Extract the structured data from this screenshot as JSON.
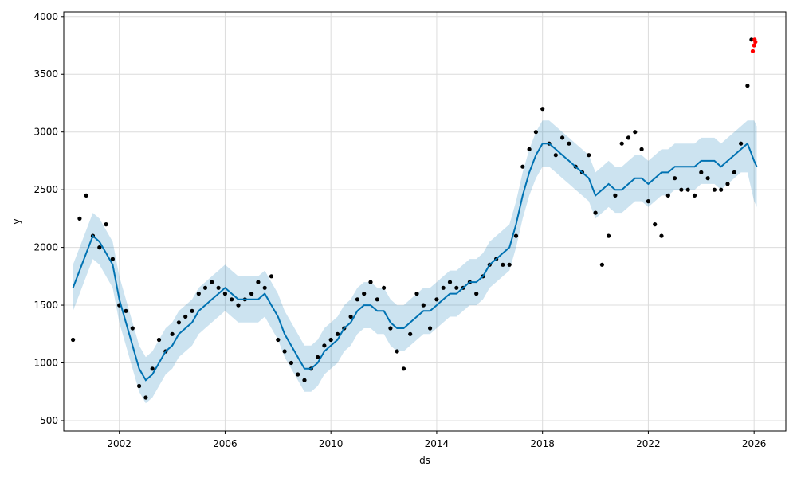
{
  "chart_data": {
    "type": "line",
    "title": "",
    "xlabel": "ds",
    "ylabel": "y",
    "grid": true,
    "xlim": [
      1999.9,
      2027.2
    ],
    "ylim": [
      410,
      4040
    ],
    "x_ticks": [
      2002,
      2006,
      2010,
      2014,
      2018,
      2022,
      2026
    ],
    "y_ticks": [
      500,
      1000,
      1500,
      2000,
      2500,
      3000,
      3500,
      4000
    ],
    "colors": {
      "observed": "#000000",
      "forecast": "#0072b2",
      "uncertainty": "#0072b2",
      "highlight": "#ff0000"
    },
    "series": [
      {
        "role": "observed",
        "x": [
          2000.25,
          2000.5,
          2000.75,
          2001.0,
          2001.25,
          2001.5,
          2001.75,
          2002.0,
          2002.25,
          2002.5,
          2002.75,
          2003.0,
          2003.25,
          2003.5,
          2003.75,
          2004.0,
          2004.25,
          2004.5,
          2004.75,
          2005.0,
          2005.25,
          2005.5,
          2005.75,
          2006.0,
          2006.25,
          2006.5,
          2006.75,
          2007.0,
          2007.25,
          2007.5,
          2007.75,
          2008.0,
          2008.25,
          2008.5,
          2008.75,
          2009.0,
          2009.25,
          2009.5,
          2009.75,
          2010.0,
          2010.25,
          2010.5,
          2010.75,
          2011.0,
          2011.25,
          2011.5,
          2011.75,
          2012.0,
          2012.25,
          2012.5,
          2012.75,
          2013.0,
          2013.25,
          2013.5,
          2013.75,
          2014.0,
          2014.25,
          2014.5,
          2014.75,
          2015.0,
          2015.25,
          2015.5,
          2015.75,
          2016.0,
          2016.25,
          2016.5,
          2016.75,
          2017.0,
          2017.25,
          2017.5,
          2017.75,
          2018.0,
          2018.25,
          2018.5,
          2018.75,
          2019.0,
          2019.25,
          2019.5,
          2019.75,
          2020.0,
          2020.25,
          2020.5,
          2020.75,
          2021.0,
          2021.25,
          2021.5,
          2021.75,
          2022.0,
          2022.25,
          2022.5,
          2022.75,
          2023.0,
          2023.25,
          2023.5,
          2023.75,
          2024.0,
          2024.25,
          2024.5,
          2024.75,
          2025.0,
          2025.25,
          2025.5,
          2025.75,
          2025.9
        ],
        "y": [
          1200,
          2250,
          2450,
          2100,
          2000,
          2200,
          1900,
          1500,
          1450,
          1300,
          800,
          700,
          950,
          1200,
          1100,
          1250,
          1350,
          1400,
          1450,
          1600,
          1650,
          1700,
          1650,
          1600,
          1550,
          1500,
          1550,
          1600,
          1700,
          1650,
          1750,
          1200,
          1100,
          1000,
          900,
          850,
          950,
          1050,
          1150,
          1200,
          1250,
          1300,
          1400,
          1550,
          1600,
          1700,
          1550,
          1650,
          1300,
          1100,
          950,
          1250,
          1600,
          1500,
          1300,
          1550,
          1650,
          1700,
          1650,
          1650,
          1700,
          1600,
          1750,
          1850,
          1900,
          1850,
          1850,
          2100,
          2700,
          2850,
          3000,
          3200,
          2900,
          2800,
          2950,
          2900,
          2700,
          2650,
          2800,
          2300,
          1850,
          2100,
          2450,
          2900,
          2950,
          3000,
          2850,
          2400,
          2200,
          2100,
          2450,
          2600,
          2500,
          2500,
          2450,
          2650,
          2600,
          2500,
          2500,
          2550,
          2650,
          2900,
          3400,
          3800
        ]
      },
      {
        "role": "forecast",
        "x": [
          2000.25,
          2000.5,
          2000.75,
          2001.0,
          2001.25,
          2001.5,
          2001.75,
          2002.0,
          2002.25,
          2002.5,
          2002.75,
          2003.0,
          2003.25,
          2003.5,
          2003.75,
          2004.0,
          2004.25,
          2004.5,
          2004.75,
          2005.0,
          2005.25,
          2005.5,
          2005.75,
          2006.0,
          2006.25,
          2006.5,
          2006.75,
          2007.0,
          2007.25,
          2007.5,
          2007.75,
          2008.0,
          2008.25,
          2008.5,
          2008.75,
          2009.0,
          2009.25,
          2009.5,
          2009.75,
          2010.0,
          2010.25,
          2010.5,
          2010.75,
          2011.0,
          2011.25,
          2011.5,
          2011.75,
          2012.0,
          2012.25,
          2012.5,
          2012.75,
          2013.0,
          2013.25,
          2013.5,
          2013.75,
          2014.0,
          2014.25,
          2014.5,
          2014.75,
          2015.0,
          2015.25,
          2015.5,
          2015.75,
          2016.0,
          2016.25,
          2016.5,
          2016.75,
          2017.0,
          2017.25,
          2017.5,
          2017.75,
          2018.0,
          2018.25,
          2018.5,
          2018.75,
          2019.0,
          2019.25,
          2019.5,
          2019.75,
          2020.0,
          2020.25,
          2020.5,
          2020.75,
          2021.0,
          2021.25,
          2021.5,
          2021.75,
          2022.0,
          2022.25,
          2022.5,
          2022.75,
          2023.0,
          2023.25,
          2023.5,
          2023.75,
          2024.0,
          2024.25,
          2024.5,
          2024.75,
          2025.0,
          2025.25,
          2025.5,
          2025.75,
          2026.0,
          2026.1
        ],
        "y": [
          1650,
          1800,
          1950,
          2100,
          2050,
          1950,
          1850,
          1550,
          1350,
          1150,
          950,
          850,
          900,
          1000,
          1100,
          1150,
          1250,
          1300,
          1350,
          1450,
          1500,
          1550,
          1600,
          1650,
          1600,
          1550,
          1550,
          1550,
          1550,
          1600,
          1500,
          1400,
          1250,
          1150,
          1050,
          950,
          950,
          1000,
          1100,
          1150,
          1200,
          1300,
          1350,
          1450,
          1500,
          1500,
          1450,
          1450,
          1350,
          1300,
          1300,
          1350,
          1400,
          1450,
          1450,
          1500,
          1550,
          1600,
          1600,
          1650,
          1700,
          1700,
          1750,
          1850,
          1900,
          1950,
          2000,
          2200,
          2450,
          2650,
          2800,
          2900,
          2900,
          2850,
          2800,
          2750,
          2700,
          2650,
          2600,
          2450,
          2500,
          2550,
          2500,
          2500,
          2550,
          2600,
          2600,
          2550,
          2600,
          2650,
          2650,
          2700,
          2700,
          2700,
          2700,
          2750,
          2750,
          2750,
          2700,
          2750,
          2800,
          2850,
          2900,
          2750,
          2700
        ],
        "lower": [
          1450,
          1600,
          1750,
          1900,
          1850,
          1750,
          1650,
          1350,
          1150,
          950,
          750,
          650,
          700,
          800,
          900,
          950,
          1050,
          1100,
          1150,
          1250,
          1300,
          1350,
          1400,
          1450,
          1400,
          1350,
          1350,
          1350,
          1350,
          1400,
          1300,
          1200,
          1050,
          950,
          850,
          750,
          750,
          800,
          900,
          950,
          1000,
          1100,
          1150,
          1250,
          1300,
          1300,
          1250,
          1250,
          1150,
          1100,
          1100,
          1150,
          1200,
          1250,
          1250,
          1300,
          1350,
          1400,
          1400,
          1450,
          1500,
          1500,
          1550,
          1650,
          1700,
          1750,
          1800,
          2000,
          2250,
          2450,
          2600,
          2700,
          2700,
          2650,
          2600,
          2550,
          2500,
          2450,
          2400,
          2250,
          2300,
          2350,
          2300,
          2300,
          2350,
          2400,
          2400,
          2350,
          2400,
          2450,
          2450,
          2500,
          2500,
          2500,
          2500,
          2550,
          2550,
          2550,
          2500,
          2550,
          2600,
          2650,
          2650,
          2400,
          2350
        ],
        "upper": [
          1850,
          2000,
          2150,
          2300,
          2250,
          2150,
          2050,
          1750,
          1550,
          1350,
          1150,
          1050,
          1100,
          1200,
          1300,
          1350,
          1450,
          1500,
          1550,
          1650,
          1700,
          1750,
          1800,
          1850,
          1800,
          1750,
          1750,
          1750,
          1750,
          1800,
          1700,
          1600,
          1450,
          1350,
          1250,
          1150,
          1150,
          1200,
          1300,
          1350,
          1400,
          1500,
          1550,
          1650,
          1700,
          1700,
          1650,
          1650,
          1550,
          1500,
          1500,
          1550,
          1600,
          1650,
          1650,
          1700,
          1750,
          1800,
          1800,
          1850,
          1900,
          1900,
          1950,
          2050,
          2100,
          2150,
          2200,
          2400,
          2650,
          2850,
          3000,
          3100,
          3100,
          3050,
          3000,
          2950,
          2900,
          2850,
          2800,
          2650,
          2700,
          2750,
          2700,
          2700,
          2750,
          2800,
          2800,
          2750,
          2800,
          2850,
          2850,
          2900,
          2900,
          2900,
          2900,
          2950,
          2950,
          2950,
          2900,
          2950,
          3000,
          3050,
          3100,
          3100,
          3050
        ]
      },
      {
        "role": "highlight",
        "x": [
          2025.95,
          2026.0,
          2026.02,
          2026.05
        ],
        "y": [
          3700,
          3750,
          3800,
          3780
        ]
      }
    ]
  }
}
